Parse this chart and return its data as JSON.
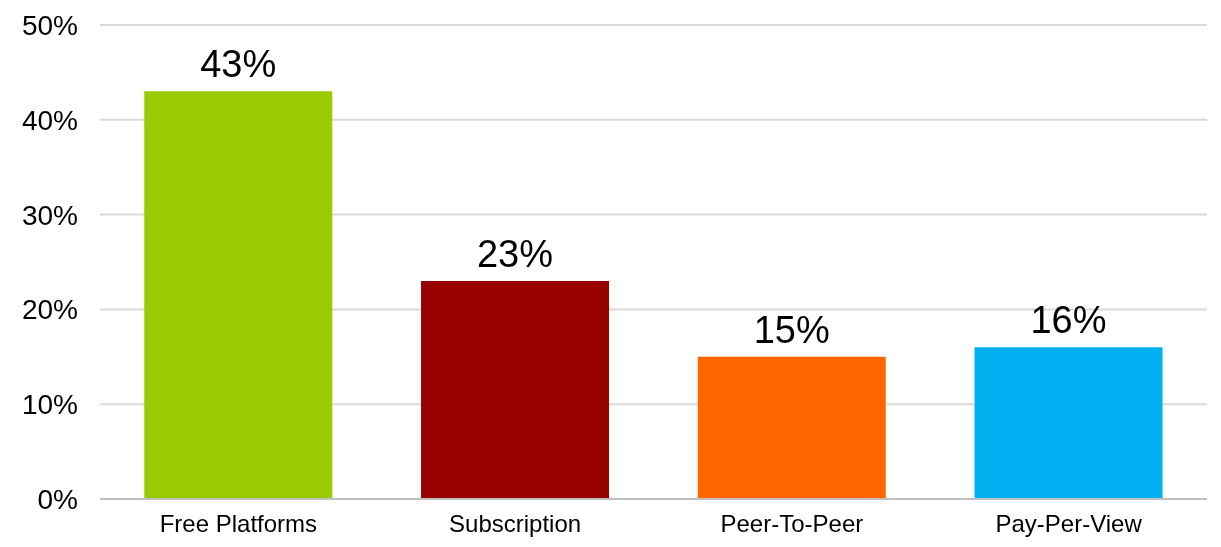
{
  "chart_data": {
    "type": "bar",
    "categories": [
      "Free Platforms",
      "Subscription",
      "Peer-To-Peer",
      "Pay-Per-View"
    ],
    "values": [
      43,
      23,
      15,
      16
    ],
    "colors": [
      "#99cc00",
      "#990000",
      "#ff6600",
      "#00b0f0"
    ],
    "value_labels": [
      "43%",
      "23%",
      "15%",
      "16%"
    ],
    "ylim": [
      0,
      50
    ],
    "yticks": [
      {
        "value": 0,
        "label": "0%"
      },
      {
        "value": 10,
        "label": "10%"
      },
      {
        "value": 20,
        "label": "20%"
      },
      {
        "value": 30,
        "label": "30%"
      },
      {
        "value": 40,
        "label": "40%"
      },
      {
        "value": 50,
        "label": "50%"
      }
    ],
    "grid": "y"
  }
}
